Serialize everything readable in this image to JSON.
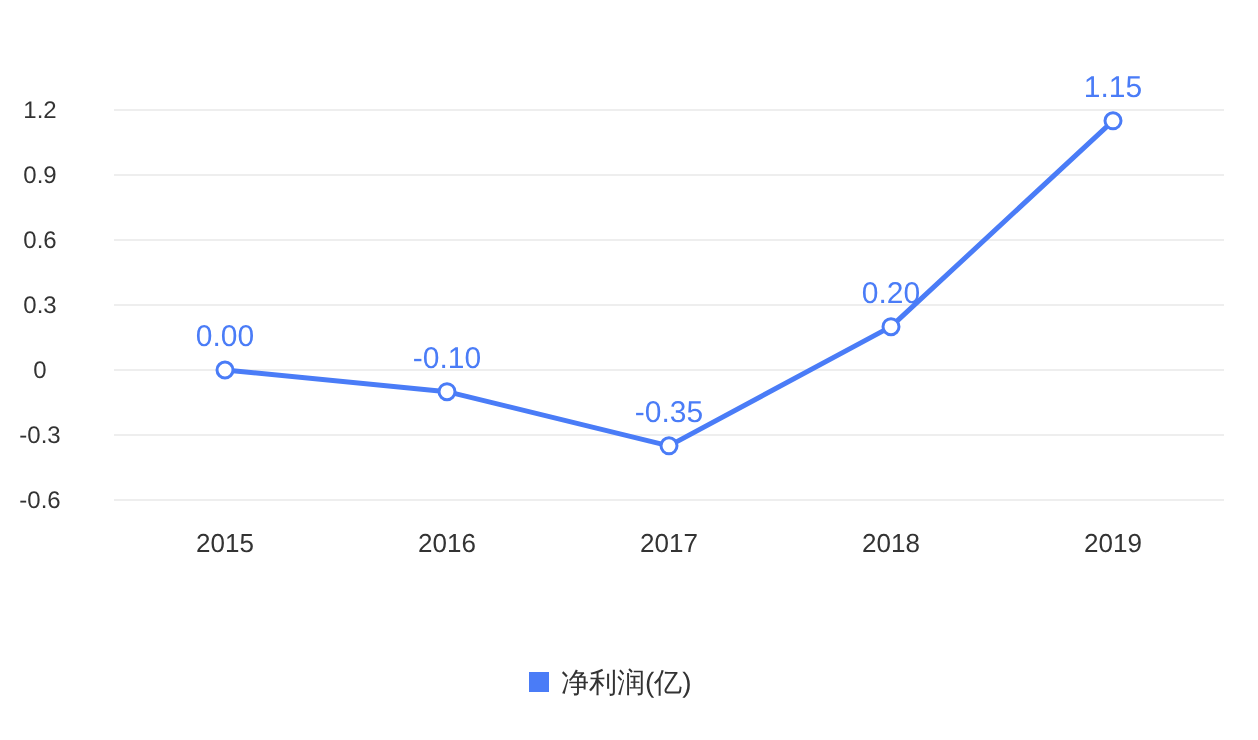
{
  "chart_data": {
    "type": "line",
    "categories": [
      "2015",
      "2016",
      "2017",
      "2018",
      "2019"
    ],
    "series": [
      {
        "name": "净利润(亿)",
        "color": "#4a7cf7",
        "values": [
          0.0,
          -0.1,
          -0.35,
          0.2,
          1.15
        ],
        "value_labels": [
          "0.00",
          "-0.10",
          "-0.35",
          "0.20",
          "1.15"
        ]
      }
    ],
    "ylim": [
      -0.6,
      1.2
    ],
    "yticks": [
      -0.6,
      -0.3,
      0,
      0.3,
      0.6,
      0.9,
      1.2
    ],
    "grid": "y",
    "legend": "bottom",
    "marker": "circle",
    "line_style": "solid"
  }
}
